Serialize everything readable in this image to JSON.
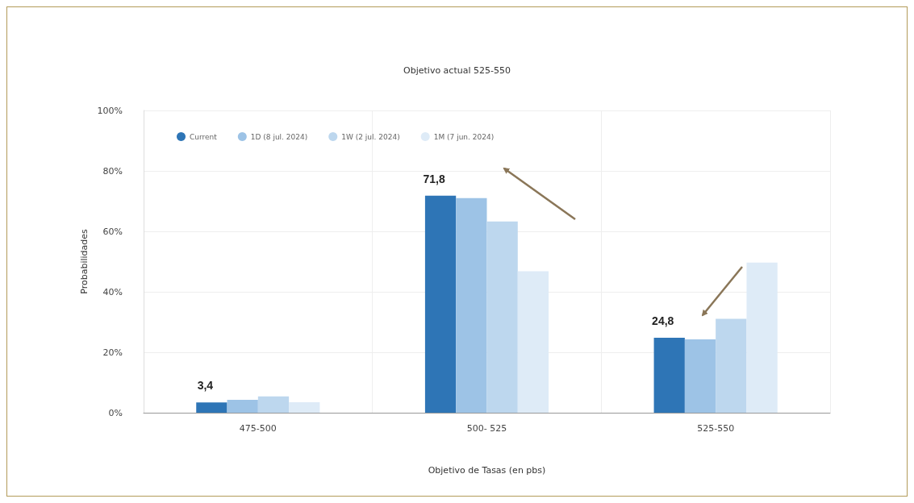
{
  "chart_data": {
    "type": "bar",
    "title": "Objetivo actual 525-550",
    "xlabel": "Objetivo de Tasas (en pbs)",
    "ylabel": "Probabilidades",
    "categories": [
      "475-500",
      "500- 525",
      "525-550"
    ],
    "series": [
      {
        "name": "Current",
        "color": "#2e75b6",
        "values": [
          3.4,
          71.8,
          24.8
        ],
        "value_labels": [
          "3,4",
          "71,8",
          "24,8"
        ]
      },
      {
        "name": "1D (8 jul. 2024)",
        "color": "#9dc3e6",
        "values": [
          4.3,
          71.0,
          24.3
        ]
      },
      {
        "name": "1W (2 jul. 2024)",
        "color": "#bdd7ee",
        "values": [
          5.4,
          63.3,
          31.1
        ]
      },
      {
        "name": "1M (7 jun. 2024)",
        "color": "#deebf7",
        "values": [
          3.5,
          46.8,
          49.7
        ]
      }
    ],
    "ylim": [
      0,
      100
    ],
    "yticks": [
      {
        "value": 0,
        "label": "0%"
      },
      {
        "value": 20,
        "label": "20%"
      },
      {
        "value": 40,
        "label": "40%"
      },
      {
        "value": 60,
        "label": "60%"
      },
      {
        "value": 80,
        "label": "80%"
      },
      {
        "value": 100,
        "label": "100%"
      }
    ],
    "grid": true,
    "legend": "top left"
  }
}
